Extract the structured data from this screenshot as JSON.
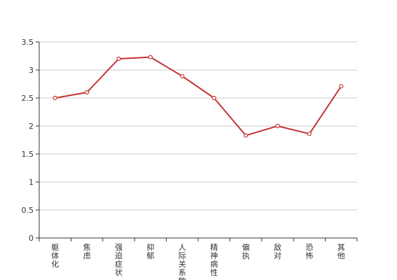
{
  "chart_data": {
    "type": "line",
    "title": "",
    "xlabel": "",
    "ylabel": "",
    "categories": [
      "躯体化",
      "焦虑",
      "强迫症状",
      "抑郁",
      "人际关系敏感",
      "精神病性",
      "偏执",
      "敌对",
      "恐怖",
      "其他"
    ],
    "series": [
      {
        "values": [
          2.5,
          2.6,
          3.2,
          3.23,
          2.89,
          2.5,
          1.83,
          2.0,
          1.86,
          2.71
        ]
      }
    ],
    "ylim": [
      0,
      3.5
    ],
    "yticks": [
      "0",
      "0.5",
      "1",
      "1.5",
      "2",
      "2.5",
      "3",
      "3.5"
    ],
    "grid": true,
    "legend": "none",
    "colors": {
      "line": "#c23531",
      "grid": "#cccccc",
      "axis": "#333333",
      "marker_fill": "#ffffff"
    }
  }
}
